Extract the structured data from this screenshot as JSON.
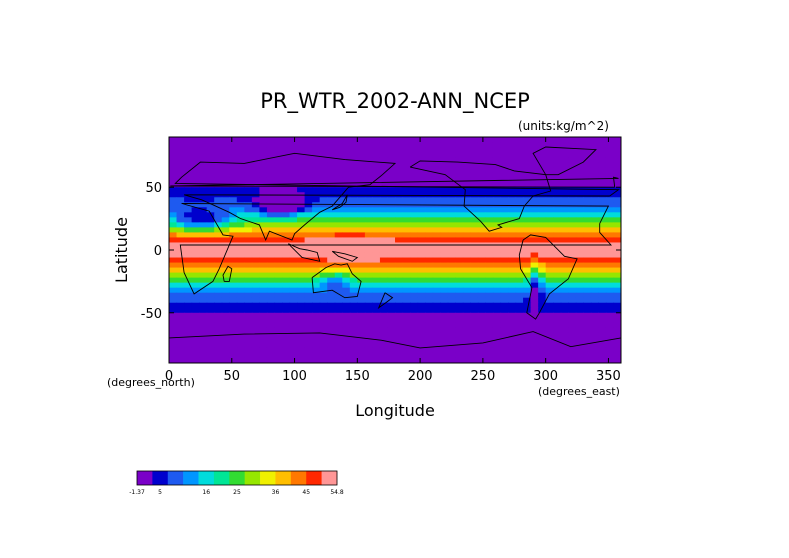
{
  "chart_data": {
    "type": "heatmap",
    "title": "PR_WTR_2002-ANN_NCEP",
    "units_label": "(units:kg/m^2)",
    "xlabel": "Longitude",
    "ylabel": "Latitude",
    "x_units_label": "(degrees_east)",
    "y_units_label": "(degrees_north)",
    "xlim": [
      0,
      360
    ],
    "ylim": [
      -90,
      90
    ],
    "x_ticks": [
      0,
      50,
      100,
      150,
      200,
      250,
      300,
      350
    ],
    "y_ticks": [
      -50,
      0,
      50
    ],
    "colorbar": {
      "tick_labels": [
        "-1.37",
        "5",
        "16",
        "25",
        "36",
        "45",
        "54.8"
      ],
      "vmin": -1.37,
      "vmax": 54.8,
      "colors": [
        "#7a00c8",
        "#0000cd",
        "#1e5af0",
        "#0096ff",
        "#00dcdc",
        "#00e696",
        "#32dc32",
        "#96e600",
        "#f0f000",
        "#ffbe00",
        "#ff7800",
        "#ff2800",
        "#ff9696"
      ]
    },
    "grid": false,
    "map": "global equirectangular field of annual mean precipitable water (2002, NCEP) with coastlines"
  }
}
